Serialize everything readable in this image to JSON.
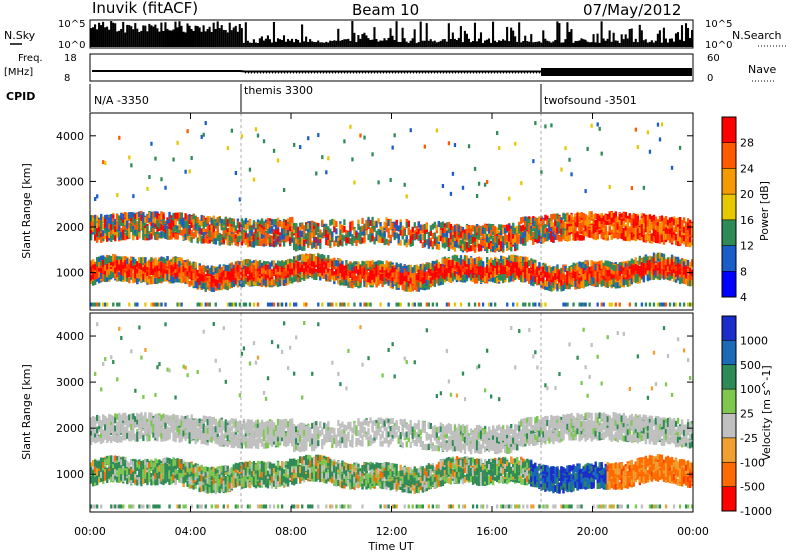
{
  "header": {
    "station": "Inuvik (fitACF)",
    "beam": "Beam 10",
    "date": "07/May/2012"
  },
  "nsky_panel": {
    "left_label": "N.Sky",
    "right_label": "N.Search",
    "left_ticks": [
      "10^5",
      "10^0"
    ],
    "right_ticks": [
      "10^5",
      "10^0"
    ]
  },
  "freq_panel": {
    "left_label_1": "Freq.",
    "left_label_2": "[MHz]",
    "right_label": "Nave",
    "left_ticks": [
      "18",
      "8"
    ],
    "right_ticks": [
      "60",
      "0"
    ]
  },
  "cpid": {
    "label": "CPID",
    "segments": [
      {
        "name": "N/A -3350",
        "start_hour": 0
      },
      {
        "name": "themis 3300",
        "start_hour": 6
      },
      {
        "name": "twofsound -3501",
        "start_hour": 18
      }
    ]
  },
  "chart_data": [
    {
      "type": "heatmap",
      "title": "Power",
      "ylabel": "Slant Range [km]",
      "xlabel": "",
      "xlim": [
        0,
        24
      ],
      "ylim": [
        180,
        4500
      ],
      "yticks": [
        "1000",
        "2000",
        "3000",
        "4000"
      ],
      "colorbar_label": "Power [dB]",
      "colorbar_ticks": [
        "28",
        "24",
        "20",
        "16",
        "12",
        "8",
        "4"
      ],
      "colorbar_colors": [
        "#ff0000",
        "#ff5a00",
        "#f59a00",
        "#e6c800",
        "#2e8b57",
        "#1a5cc8",
        "#0000ff"
      ],
      "bands": [
        {
          "range_center_km": 1000,
          "range_width_km": 450,
          "start_hour": 0,
          "end_hour": 24,
          "dominant": "red"
        },
        {
          "range_center_km": 1900,
          "range_width_km": 500,
          "start_hour": 0,
          "end_hour": 24,
          "dominant": "orange-green"
        }
      ]
    },
    {
      "type": "heatmap",
      "title": "Velocity",
      "ylabel": "Slant Range [km]",
      "xlabel": "Time UT",
      "xlim": [
        0,
        24
      ],
      "ylim": [
        180,
        4500
      ],
      "yticks": [
        "1000",
        "2000",
        "3000",
        "4000"
      ],
      "xticks": [
        "00:00",
        "04:00",
        "08:00",
        "12:00",
        "16:00",
        "20:00",
        "00:00"
      ],
      "colorbar_label": "Velocity [m s^-1]",
      "colorbar_ticks": [
        "1000",
        "500",
        "100",
        "25",
        "-25",
        "-100",
        "-500",
        "-1000"
      ],
      "colorbar_colors": [
        "#1a2ccc",
        "#1a6ab8",
        "#2e8b57",
        "#7ec850",
        "#c0c0c0",
        "#f0a030",
        "#ff6a00",
        "#ff0000"
      ],
      "bands": [
        {
          "range_center_km": 1000,
          "range_width_km": 450,
          "start_hour": 0,
          "end_hour": 24,
          "dominant": "green"
        },
        {
          "range_center_km": 1950,
          "range_width_km": 500,
          "start_hour": 0,
          "end_hour": 24,
          "dominant": "grey"
        }
      ]
    }
  ]
}
